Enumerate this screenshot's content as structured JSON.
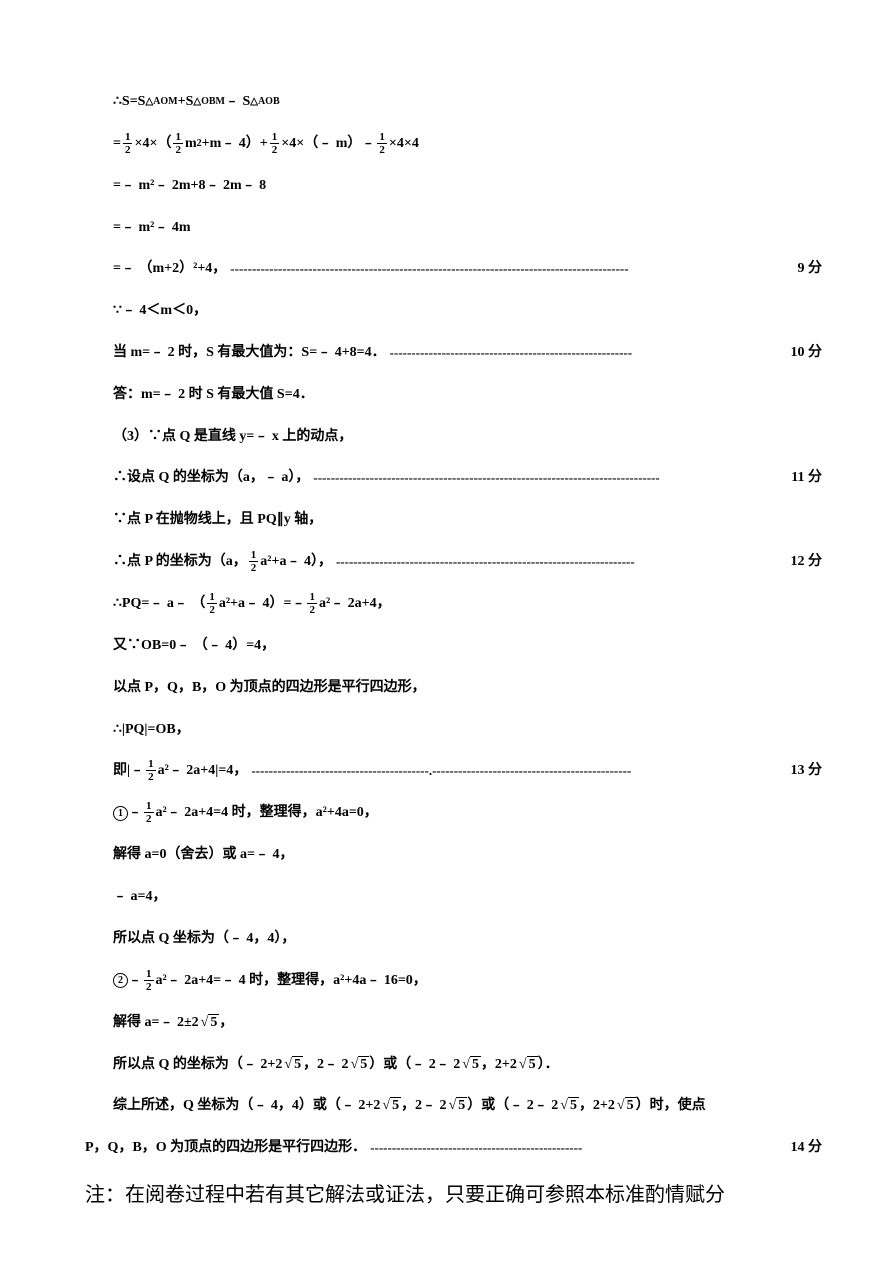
{
  "fontsize_body_pt": 10.5,
  "fontsize_note_pt": 16,
  "colors": {
    "text": "#000000",
    "background": "#ffffff"
  },
  "fractions": {
    "half_num": "1",
    "half_den": "2"
  },
  "radicals": {
    "five": "5"
  },
  "circled": {
    "one": "1",
    "two": "2"
  },
  "lines": [
    {
      "id": "l1",
      "pre": "∴S=S",
      "s1": "△AOM",
      "mid1": "+S",
      "s2": "△OBM",
      "mid2": "﹣ S",
      "s3": "△AOB"
    },
    {
      "id": "l2",
      "a": "=",
      "b": "×4×（",
      "c": "m",
      "d": "+m﹣ 4）+",
      "e": "×4×（﹣ m）﹣ ",
      "f": "×4×4"
    },
    {
      "id": "l3",
      "text": "=﹣ m²﹣ 2m+8﹣ 2m﹣ 8"
    },
    {
      "id": "l4",
      "text": "=﹣ m²﹣ 4m"
    },
    {
      "id": "l5",
      "text": "=﹣ （m+2）²+4，",
      "score": "9 分"
    },
    {
      "id": "l6",
      "text": "∵﹣ 4＜m＜0，"
    },
    {
      "id": "l7",
      "text": "当 m=﹣ 2 时，S 有最大值为：S=﹣ 4+8=4．",
      "score": "10 分"
    },
    {
      "id": "l8",
      "text": "答：m=﹣ 2 时 S 有最大值 S=4．"
    },
    {
      "id": "l9",
      "text": "（3）∵点 Q 是直线 y=﹣ x 上的动点，"
    },
    {
      "id": "l10",
      "text": "∴设点 Q 的坐标为（a，﹣ a），",
      "score": "11 分"
    },
    {
      "id": "l11",
      "text": "∵点 P 在抛物线上，且 PQ∥y 轴，"
    },
    {
      "id": "l12",
      "a": "∴点 P 的坐标为（a，",
      "b": "a²+a﹣ 4），",
      "score": "12 分"
    },
    {
      "id": "l13",
      "a": "∴PQ=﹣ a﹣ （",
      "b": "a²+a﹣ 4）=﹣ ",
      "c": "a²﹣ 2a+4，"
    },
    {
      "id": "l14",
      "text": "又∵OB=0﹣ （﹣ 4）=4，"
    },
    {
      "id": "l15",
      "text": "以点 P，Q，B，O 为顶点的四边形是平行四边形，"
    },
    {
      "id": "l16",
      "text": "∴|PQ|=OB，"
    },
    {
      "id": "l17",
      "a": "即|﹣ ",
      "b": "a²﹣ 2a+4|=4，",
      "score": "13 分"
    },
    {
      "id": "l18",
      "a": "﹣ ",
      "b": "a²﹣ 2a+4=4 时，整理得，a²+4a=0，"
    },
    {
      "id": "l19",
      "text": "解得 a=0（舍去）或 a=﹣ 4，"
    },
    {
      "id": "l20",
      "text": "﹣ a=4，"
    },
    {
      "id": "l21",
      "text": "所以点 Q 坐标为（﹣ 4，4），"
    },
    {
      "id": "l22",
      "a": "﹣ ",
      "b": "a²﹣ 2a+4=﹣ 4 时，整理得，a²+4a﹣ 16=0，"
    },
    {
      "id": "l23",
      "a": "解得 a=﹣ 2±2",
      "b": "，"
    },
    {
      "id": "l24",
      "a": "所以点 Q 的坐标为（﹣ 2+2",
      "b": "，2﹣ 2",
      "c": "）或（﹣ 2﹣ 2",
      "d": "，2+2",
      "e": "）．"
    },
    {
      "id": "l25",
      "a": "综上所述，Q 坐标为（﹣ 4，4）或（﹣ 2+2",
      "b": "，2﹣ 2",
      "c": "）或（﹣ 2﹣ 2",
      "d": "，2+2",
      "e": "）时，使点"
    },
    {
      "id": "l26",
      "text": "P，Q，B，O 为顶点的四边形是平行四边形．",
      "score": "14 分"
    }
  ],
  "note": "注：在阅卷过程中若有其它解法或证法，只要正确可参照本标准酌情赋分"
}
